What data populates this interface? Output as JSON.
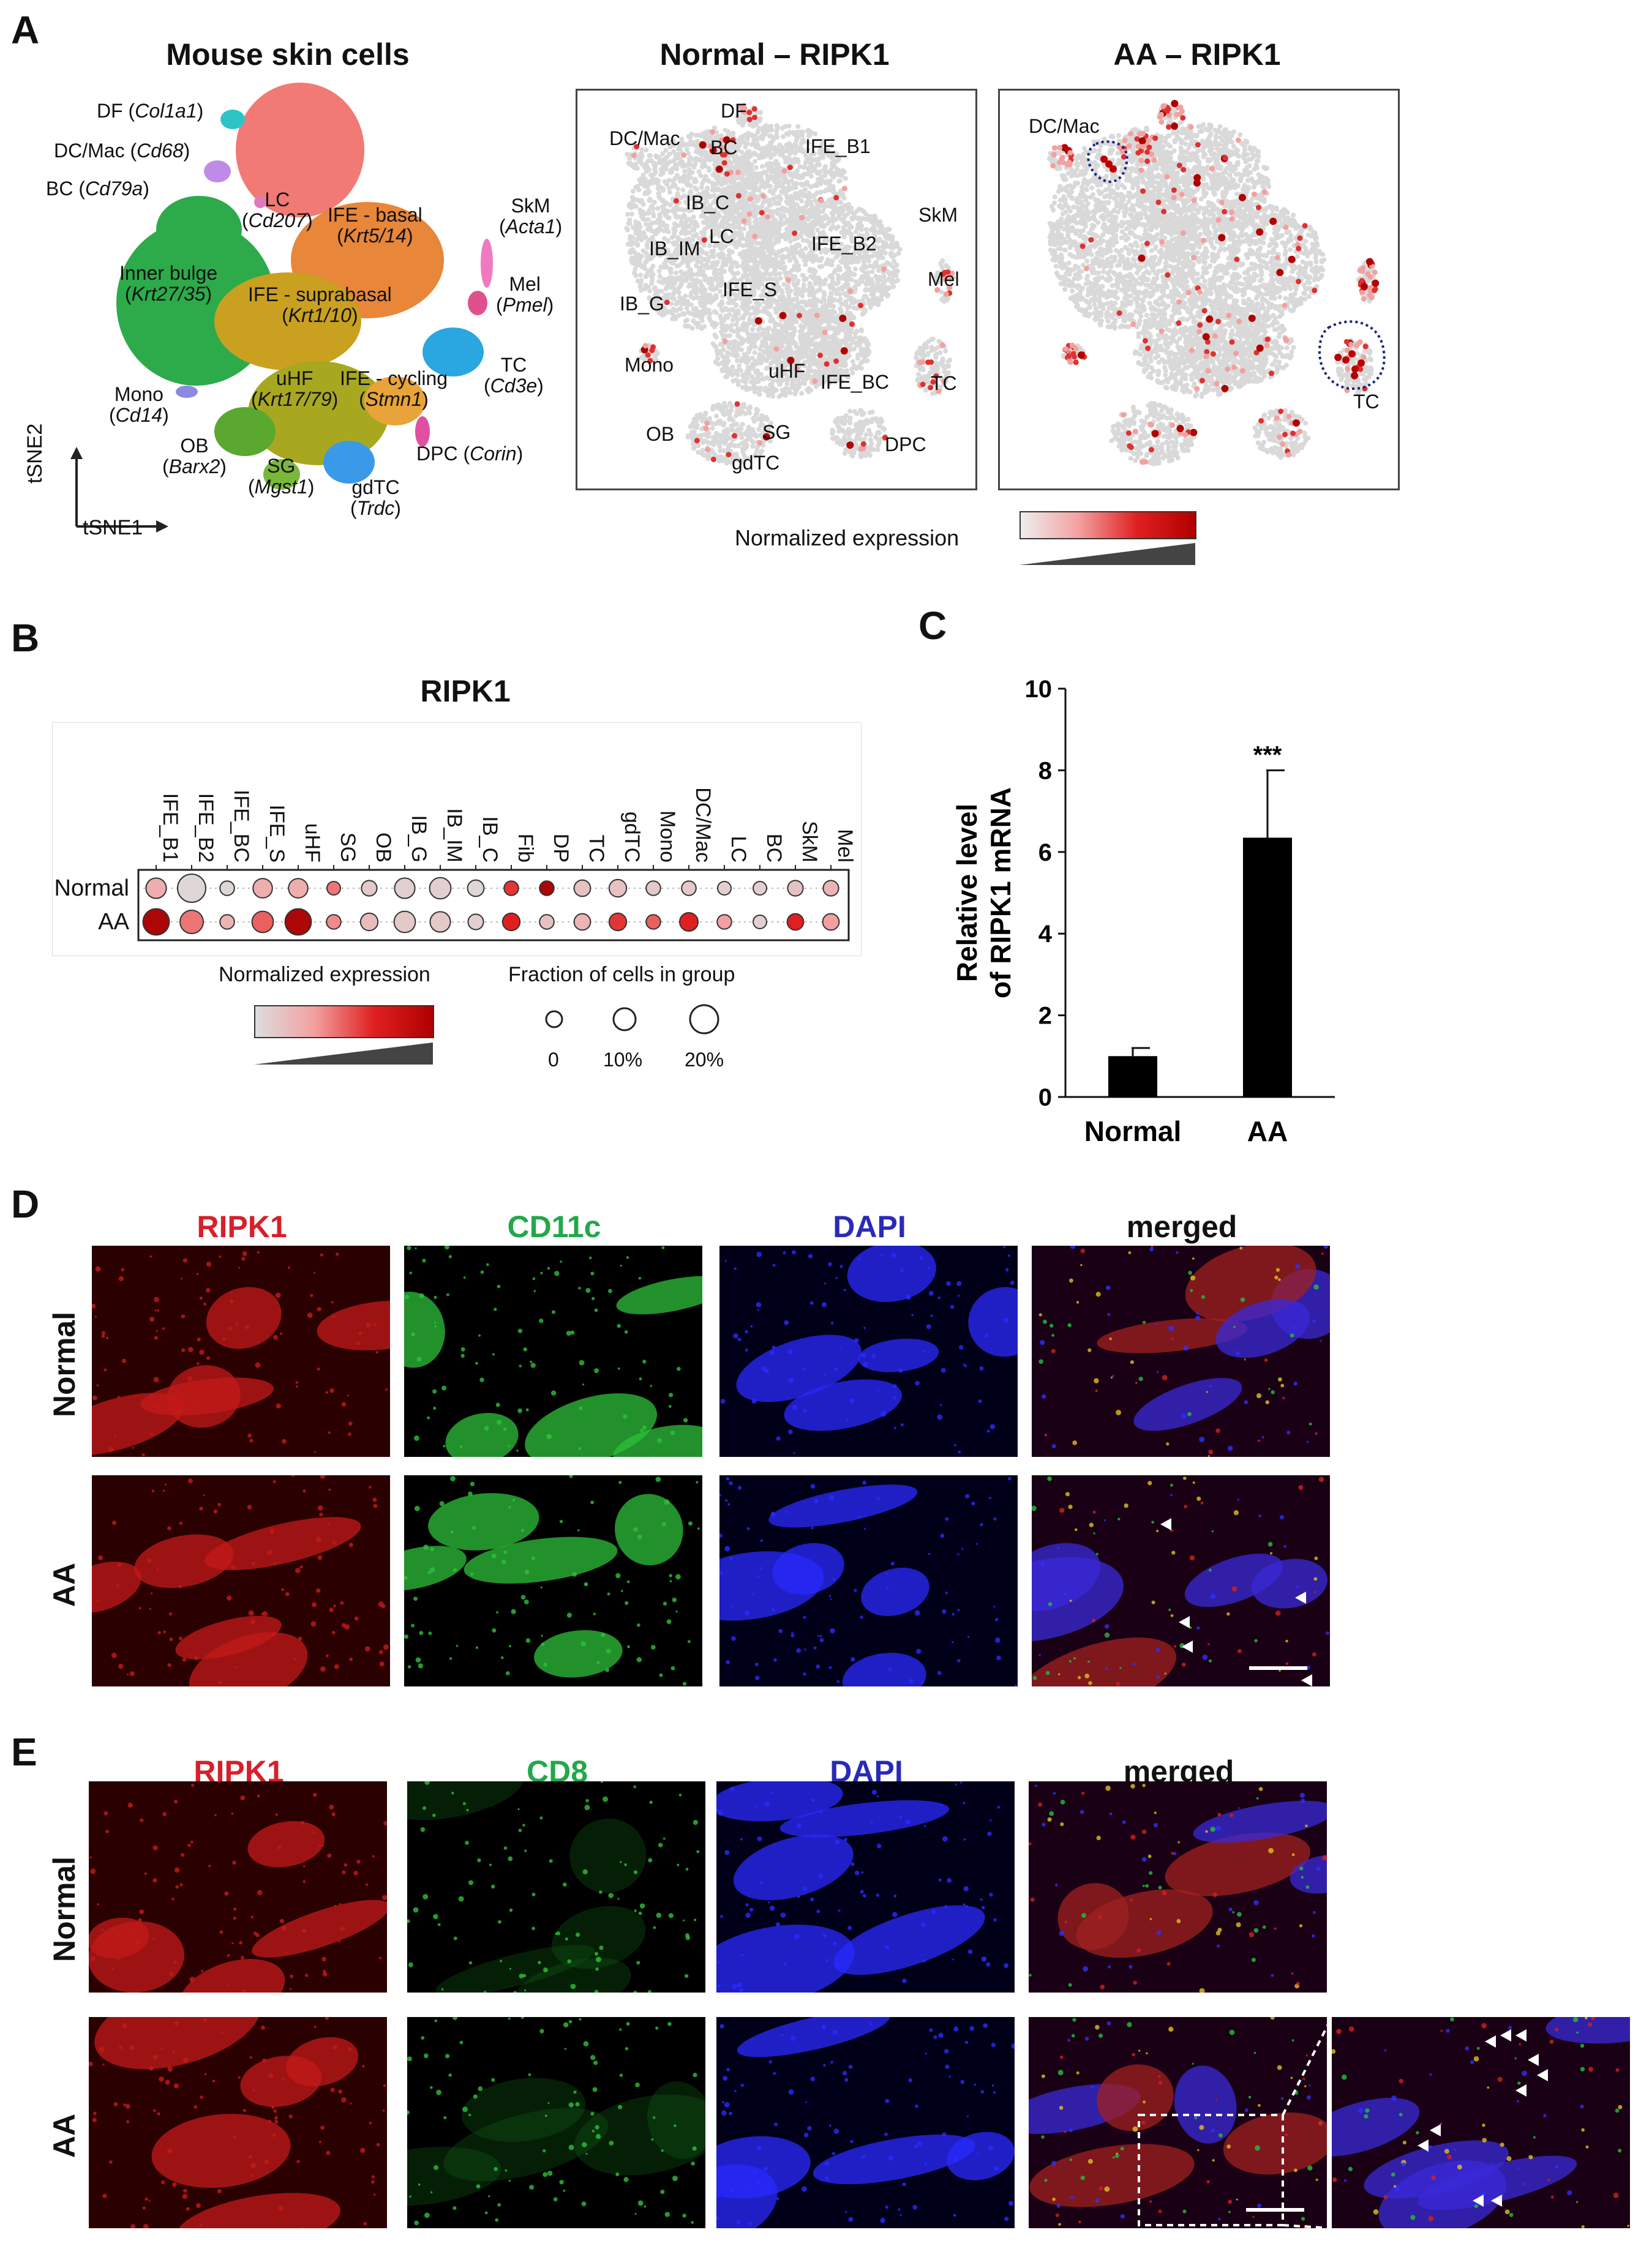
{
  "panels": {
    "A": {
      "label": "A",
      "tsne_title": "Mouse skin cells",
      "axis_x": "tSNE1",
      "axis_y": "tSNE2",
      "clusters": [
        {
          "name": "DF",
          "marker": "Col1a1",
          "color": "#2ec4c6"
        },
        {
          "name": "DC/Mac",
          "marker": "Cd68",
          "color": "#c08ae8"
        },
        {
          "name": "BC",
          "marker": "Cd79a",
          "color": "#2b8fd6"
        },
        {
          "name": "LC",
          "marker": "Cd207",
          "color": "#e07ab8"
        },
        {
          "name": "IFE - basal",
          "marker": "Krt5/14",
          "color": "#e8863a"
        },
        {
          "name": "SkM",
          "marker": "Acta1",
          "color": "#f07ac0"
        },
        {
          "name": "Mel",
          "marker": "Pmel",
          "color": "#e0508f"
        },
        {
          "name": "Inner bulge",
          "marker": "Krt27/35",
          "color": "#2daa4a"
        },
        {
          "name": "IFE - suprabasal",
          "marker": "Krt1/10",
          "color": "#c9a020"
        },
        {
          "name": "TC",
          "marker": "Cd3e",
          "color": "#2aa6e0"
        },
        {
          "name": "IFE - cycling",
          "marker": "Stmn1",
          "color": "#e8a33a"
        },
        {
          "name": "uHF",
          "marker": "Krt17/79",
          "color": "#a8a820"
        },
        {
          "name": "Mono",
          "marker": "Cd14",
          "color": "#8a8ae0"
        },
        {
          "name": "DPC",
          "marker": "Corin",
          "color": "#e050a0"
        },
        {
          "name": "OB",
          "marker": "Barx2",
          "color": "#5aa830"
        },
        {
          "name": "SG",
          "marker": "Mgst1",
          "color": "#7ab83a"
        },
        {
          "name": "gdTC",
          "marker": "Trdc",
          "color": "#3a9ae8"
        }
      ],
      "normal_title": "Normal – RIPK1",
      "aa_title": "AA – RIPK1",
      "normal_labels": [
        "DF",
        "DC/Mac",
        "BC",
        "IFE_B1",
        "IB_C",
        "SkM",
        "LC",
        "IFE_B2",
        "IB_IM",
        "Mel",
        "IFE_S",
        "IB_G",
        "Mono",
        "uHF",
        "IFE_BC",
        "TC",
        "OB",
        "SG",
        "gdTC",
        "DPC"
      ],
      "aa_labels": [
        "DC/Mac",
        "TC"
      ],
      "colorbar_label": "Normalized expression"
    },
    "B": {
      "label": "B",
      "title": "RIPK1",
      "columns": [
        "IFE_B1",
        "IFE_B2",
        "IFE_BC",
        "IFE_S",
        "uHF",
        "SG",
        "OB",
        "IB_G",
        "IB_IM",
        "IB_C",
        "Fib",
        "DP",
        "TC",
        "gdTC",
        "Mono",
        "DC/Mac",
        "LC",
        "BC",
        "SkM",
        "Mel"
      ],
      "rows": [
        "Normal",
        "AA"
      ],
      "colorbar_label": "Normalized expression",
      "size_legend_title": "Fraction of cells in group",
      "size_legend_values": [
        "0",
        "10%",
        "20%"
      ]
    },
    "C": {
      "label": "C"
    },
    "D": {
      "label": "D",
      "channels": [
        {
          "name": "RIPK1",
          "color": "#d8202a"
        },
        {
          "name": "CD11c",
          "color": "#22a84a"
        },
        {
          "name": "DAPI",
          "color": "#2a2ab8"
        },
        {
          "name": "merged",
          "color": "#111111"
        }
      ],
      "rows": [
        "Normal",
        "AA"
      ]
    },
    "E": {
      "label": "E",
      "channels": [
        {
          "name": "RIPK1",
          "color": "#d8202a"
        },
        {
          "name": "CD8",
          "color": "#22a84a"
        },
        {
          "name": "DAPI",
          "color": "#2a2ab8"
        },
        {
          "name": "merged",
          "color": "#111111"
        }
      ],
      "rows": [
        "Normal",
        "AA"
      ]
    }
  },
  "dotplot": {
    "Normal": {
      "expr": [
        0.35,
        0.05,
        0.05,
        0.35,
        0.35,
        0.55,
        0.15,
        0.1,
        0.1,
        0.05,
        0.7,
        0.95,
        0.2,
        0.2,
        0.15,
        0.15,
        0.1,
        0.1,
        0.2,
        0.3
      ],
      "frac": [
        0.6,
        1.0,
        0.3,
        0.55,
        0.55,
        0.25,
        0.35,
        0.6,
        0.65,
        0.4,
        0.3,
        0.3,
        0.4,
        0.45,
        0.3,
        0.3,
        0.25,
        0.25,
        0.35,
        0.35
      ]
    },
    "AA": {
      "expr": [
        0.95,
        0.55,
        0.3,
        0.6,
        0.95,
        0.5,
        0.25,
        0.15,
        0.15,
        0.1,
        0.75,
        0.2,
        0.3,
        0.7,
        0.6,
        0.75,
        0.45,
        0.1,
        0.75,
        0.45
      ],
      "frac": [
        0.9,
        0.75,
        0.3,
        0.65,
        0.9,
        0.3,
        0.45,
        0.65,
        0.6,
        0.35,
        0.45,
        0.3,
        0.4,
        0.45,
        0.3,
        0.5,
        0.3,
        0.25,
        0.4,
        0.4
      ]
    }
  },
  "chart_data": {
    "type": "bar",
    "categories": [
      "Normal",
      "AA"
    ],
    "values": [
      1.0,
      6.35
    ],
    "errors": [
      0.2,
      1.65
    ],
    "significance": [
      "",
      "***"
    ],
    "ylabel": "Relative level of RIPK1 mRNA",
    "ylabel_lines": [
      "Relative level",
      "of RIPK1 mRNA"
    ],
    "ylim": [
      0,
      10
    ],
    "yticks": [
      0,
      2,
      4,
      6,
      8,
      10
    ],
    "bar_color": "#000000",
    "grid": false
  }
}
